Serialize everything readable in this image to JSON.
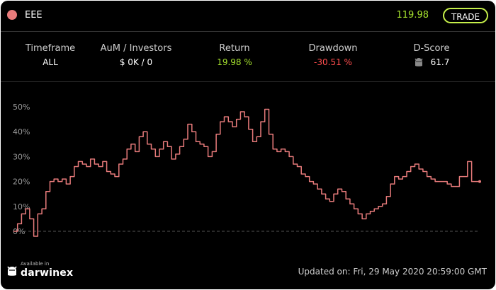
{
  "header": {
    "name": "EEE",
    "price": "119.98",
    "trade_label": "TRADE",
    "dot_color": "#e87b7b"
  },
  "stats": [
    {
      "label": "Timeframe",
      "value": "ALL"
    },
    {
      "label": "AuM / Investors",
      "value": "$ 0K / 0"
    },
    {
      "label": "Return",
      "value": "19.98 %"
    },
    {
      "label": "Drawdown",
      "value": "-30.51 %"
    },
    {
      "label": "D-Score",
      "value": "61.7"
    }
  ],
  "colors": {
    "positive": "#a6e22e",
    "negative": "#ff4d4d",
    "line": "#e87b7b",
    "accent": "#c6f04a"
  },
  "footer": {
    "updated": "Updated on: Fri, 29 May 2020 20:59:00 GMT",
    "brand_small": "Available in",
    "brand_name": "darwinex"
  },
  "chart_data": {
    "type": "line",
    "title": "",
    "xlabel": "",
    "ylabel": "",
    "ylim": [
      0,
      50
    ],
    "yticks": [
      0,
      10,
      20,
      30,
      40,
      50
    ],
    "ytick_labels": [
      "0%",
      "10%",
      "20%",
      "30%",
      "40%",
      "50%"
    ],
    "baseline": 0,
    "series": [
      {
        "values": [
          0,
          3,
          7,
          9,
          5,
          -2,
          7,
          9,
          16,
          20,
          21,
          20,
          21,
          19,
          22,
          26,
          28,
          27,
          26,
          29,
          27,
          26,
          28,
          24,
          23,
          22,
          27,
          29,
          33,
          35,
          32,
          38,
          40,
          35,
          33,
          30,
          33,
          36,
          34,
          29,
          31,
          34,
          37,
          43,
          40,
          36,
          35,
          34,
          30,
          32,
          39,
          44,
          46,
          44,
          42,
          45,
          48,
          46,
          41,
          36,
          38,
          44,
          49,
          39,
          33,
          32,
          33,
          32,
          30,
          27,
          26,
          23,
          22,
          20,
          19,
          17,
          15,
          13,
          12,
          15,
          17,
          16,
          13,
          11,
          9,
          7,
          5,
          7,
          8,
          9,
          10,
          11,
          14,
          19,
          22,
          21,
          22,
          24,
          26,
          27,
          25,
          24,
          22,
          21,
          20,
          20,
          20,
          19,
          18,
          18,
          22,
          22,
          28,
          20,
          20,
          20
        ]
      }
    ]
  }
}
